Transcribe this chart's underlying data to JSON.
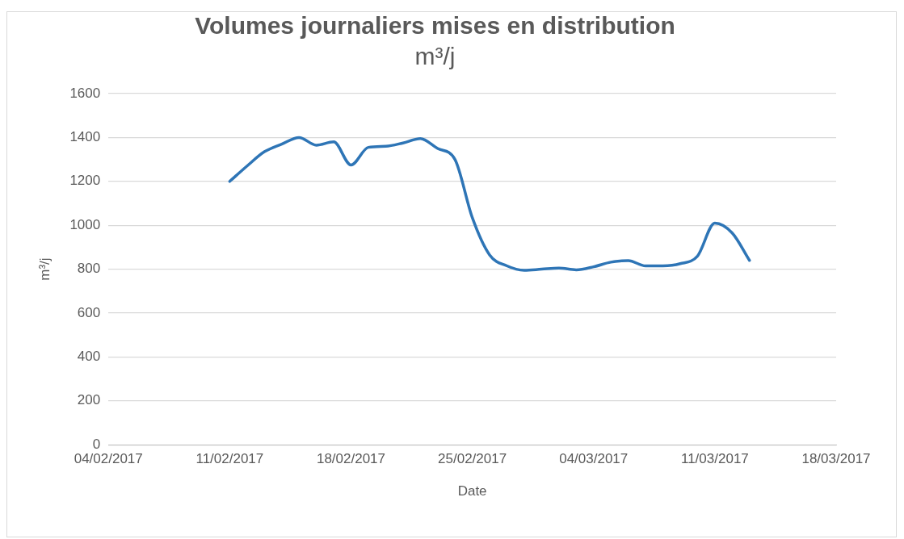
{
  "chart_data": {
    "type": "line",
    "title": "Volumes journaliers mises en distribution",
    "subtitle": "m³/j",
    "xlabel": "Date",
    "ylabel": "m³/j",
    "xlim": [
      "2017-02-04",
      "2017-03-18"
    ],
    "xticks": [
      {
        "value": "2017-02-04",
        "label": "04/02/2017"
      },
      {
        "value": "2017-02-11",
        "label": "11/02/2017"
      },
      {
        "value": "2017-02-18",
        "label": "18/02/2017"
      },
      {
        "value": "2017-02-25",
        "label": "25/02/2017"
      },
      {
        "value": "2017-03-04",
        "label": "04/03/2017"
      },
      {
        "value": "2017-03-11",
        "label": "11/03/2017"
      },
      {
        "value": "2017-03-18",
        "label": "18/03/2017"
      }
    ],
    "ylim": [
      0,
      1600
    ],
    "yticks": [
      0,
      200,
      400,
      600,
      800,
      1000,
      1200,
      1400,
      1600
    ],
    "grid": "y",
    "legend": false,
    "marker": "none",
    "line_style": "solid",
    "x": [
      "2017-02-11",
      "2017-02-12",
      "2017-02-13",
      "2017-02-14",
      "2017-02-15",
      "2017-02-16",
      "2017-02-17",
      "2017-02-18",
      "2017-02-19",
      "2017-02-20",
      "2017-02-21",
      "2017-02-22",
      "2017-02-23",
      "2017-02-24",
      "2017-02-25",
      "2017-02-26",
      "2017-02-27",
      "2017-02-28",
      "2017-03-01",
      "2017-03-02",
      "2017-03-03",
      "2017-03-04",
      "2017-03-05",
      "2017-03-06",
      "2017-03-07",
      "2017-03-08",
      "2017-03-09",
      "2017-03-10",
      "2017-03-11",
      "2017-03-12",
      "2017-03-13"
    ],
    "series": [
      {
        "color": "#2e75b6",
        "values": [
          1200,
          1270,
          1335,
          1370,
          1400,
          1365,
          1380,
          1275,
          1355,
          1360,
          1375,
          1395,
          1350,
          1300,
          1035,
          865,
          815,
          795,
          800,
          805,
          797,
          811,
          832,
          839,
          815,
          815,
          825,
          860,
          1010,
          965,
          840
        ]
      }
    ]
  }
}
